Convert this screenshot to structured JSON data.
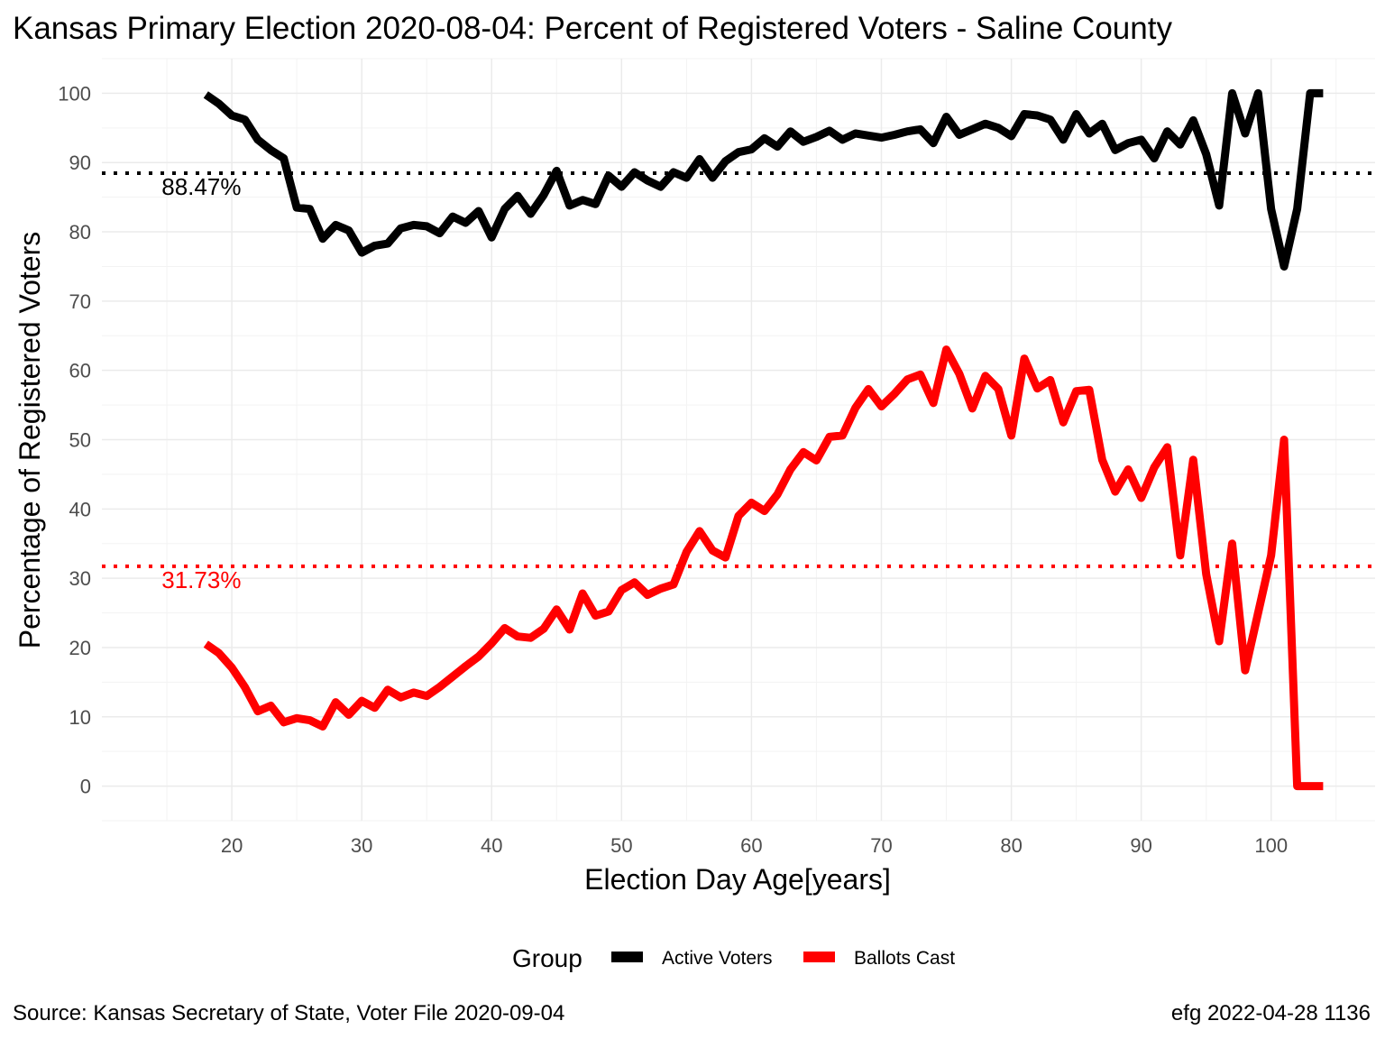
{
  "chart_data": {
    "type": "line",
    "title": "Kansas Primary Election 2020-08-04:  Percent of Registered Voters - Saline County",
    "xlabel": "Election Day Age[years]",
    "ylabel": "Percentage of Registered Voters",
    "xlim": [
      10,
      108
    ],
    "ylim": [
      -5,
      105
    ],
    "x_ticks": [
      20,
      30,
      40,
      50,
      60,
      70,
      80,
      90,
      100
    ],
    "y_ticks": [
      0,
      10,
      20,
      30,
      40,
      50,
      60,
      70,
      80,
      90,
      100
    ],
    "grid": true,
    "legend": {
      "title": "Group",
      "position": "bottom",
      "entries": [
        {
          "label": "Active Voters",
          "color": "#000000"
        },
        {
          "label": "Ballots Cast",
          "color": "#ff0000"
        }
      ]
    },
    "x": [
      18,
      19,
      20,
      21,
      22,
      23,
      24,
      25,
      26,
      27,
      28,
      29,
      30,
      31,
      32,
      33,
      34,
      35,
      36,
      37,
      38,
      39,
      40,
      41,
      42,
      43,
      44,
      45,
      46,
      47,
      48,
      49,
      50,
      51,
      52,
      53,
      54,
      55,
      56,
      57,
      58,
      59,
      60,
      61,
      62,
      63,
      64,
      65,
      66,
      67,
      68,
      69,
      70,
      71,
      72,
      73,
      74,
      75,
      76,
      77,
      78,
      79,
      80,
      81,
      82,
      83,
      84,
      85,
      86,
      87,
      88,
      89,
      90,
      91,
      92,
      93,
      94,
      95,
      96,
      97,
      98,
      99,
      100,
      101,
      102,
      103,
      104
    ],
    "series": [
      {
        "name": "Active Voters",
        "color": "#000000",
        "values": [
          99.8,
          98.5,
          96.8,
          96.2,
          93.3,
          91.8,
          90.6,
          83.5,
          83.3,
          79.0,
          81.0,
          80.2,
          77.0,
          78.0,
          78.3,
          80.5,
          81.0,
          80.8,
          79.8,
          82.2,
          81.3,
          83.0,
          79.2,
          83.3,
          85.2,
          82.6,
          85.3,
          88.8,
          83.8,
          84.6,
          84.0,
          88.1,
          86.5,
          88.6,
          87.4,
          86.5,
          88.6,
          87.8,
          90.5,
          87.8,
          90.2,
          91.5,
          91.9,
          93.5,
          92.3,
          94.5,
          93.0,
          93.7,
          94.6,
          93.3,
          94.2,
          93.9,
          93.6,
          94.0,
          94.5,
          94.8,
          92.8,
          96.6,
          94.0,
          94.8,
          95.6,
          95.0,
          93.8,
          97.0,
          96.8,
          96.2,
          93.3,
          97.0,
          94.2,
          95.6,
          91.8,
          92.8,
          93.3,
          90.6,
          94.5,
          92.6,
          96.1,
          91.2,
          83.8,
          100.0,
          94.2,
          100.0,
          83.3,
          75.0,
          83.3,
          100.0,
          100.0
        ]
      },
      {
        "name": "Ballots Cast",
        "color": "#ff0000",
        "values": [
          20.5,
          19.2,
          17.1,
          14.3,
          10.8,
          11.6,
          9.2,
          9.8,
          9.5,
          8.6,
          12.1,
          10.3,
          12.3,
          11.3,
          13.9,
          12.8,
          13.5,
          13.0,
          14.3,
          15.8,
          17.3,
          18.7,
          20.6,
          22.8,
          21.6,
          21.4,
          22.7,
          25.5,
          22.6,
          27.8,
          24.6,
          25.2,
          28.3,
          29.4,
          27.6,
          28.5,
          29.1,
          33.8,
          36.8,
          34.0,
          33.0,
          39.0,
          40.9,
          39.7,
          42.1,
          45.7,
          48.2,
          47.0,
          50.4,
          50.6,
          54.6,
          57.3,
          54.8,
          56.6,
          58.7,
          59.4,
          55.3,
          63.0,
          59.5,
          54.5,
          59.2,
          57.3,
          50.6,
          61.7,
          57.4,
          58.6,
          52.5,
          57.0,
          57.2,
          47.1,
          42.5,
          45.7,
          41.6,
          46.0,
          48.9,
          33.3,
          47.1,
          30.6,
          20.9,
          35.0,
          16.7,
          25.0,
          33.3,
          50.0,
          0.0,
          0.0,
          0.0
        ]
      }
    ],
    "reference_lines": [
      {
        "series": "Active Voters",
        "value": 88.47,
        "label": "88.47%",
        "color": "#000000",
        "style": "dotted"
      },
      {
        "series": "Ballots Cast",
        "value": 31.73,
        "label": "31.73%",
        "color": "#ff0000",
        "style": "dotted"
      }
    ]
  },
  "caption": {
    "left": "Source:  Kansas Secretary of State, Voter File  2020-09-04",
    "right": "efg 2022-04-28 1136"
  }
}
